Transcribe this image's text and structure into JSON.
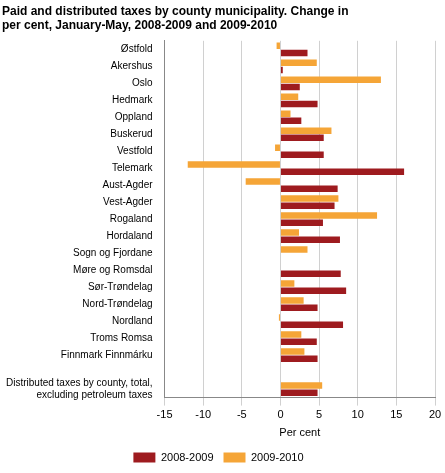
{
  "chart_data": {
    "type": "bar",
    "orientation": "horizontal",
    "title": "Paid and distributed taxes by county municipality. Change in per cent, January-May, 2008-2009 and 2009-2010",
    "x_label": "Per cent",
    "categories": [
      "Østfold",
      "Akershus",
      "Oslo",
      "Hedmark",
      "Oppland",
      "Buskerud",
      "Vestfold",
      "Telemark",
      "Aust-Agder",
      "Vest-Agder",
      "Rogaland",
      "Hordaland",
      "Sogn og Fjordane",
      "Møre og Romsdal",
      "Sør-Trøndelag",
      "Nord-Trøndelag",
      "Nordland",
      "Troms Romsa",
      "Finnmark Finnmárku",
      null,
      "Distributed taxes by county, total, excluding petroleum taxes"
    ],
    "series": [
      {
        "name": "2008-2009",
        "color": "#9e1b1f",
        "values": [
          3.5,
          0.3,
          2.5,
          4.8,
          2.7,
          5.6,
          5.6,
          16,
          7.4,
          7,
          5.5,
          7.7,
          0,
          7.8,
          8.5,
          4.8,
          8.1,
          4.7,
          4.8,
          null,
          4.8
        ]
      },
      {
        "name": "2009-2010",
        "color": "#f5a537",
        "values": [
          -0.5,
          4.7,
          13,
          2.3,
          1.3,
          6.6,
          -0.7,
          -12,
          -4.5,
          7.5,
          12.5,
          2.4,
          3.5,
          0,
          1.8,
          3,
          -0.2,
          2.7,
          3.1,
          null,
          5.4
        ]
      }
    ],
    "xlim": [
      -15,
      20
    ],
    "xticks": [
      -15,
      -10,
      -5,
      0,
      5,
      10,
      15,
      20
    ],
    "grid": true,
    "legend": "bottom"
  }
}
